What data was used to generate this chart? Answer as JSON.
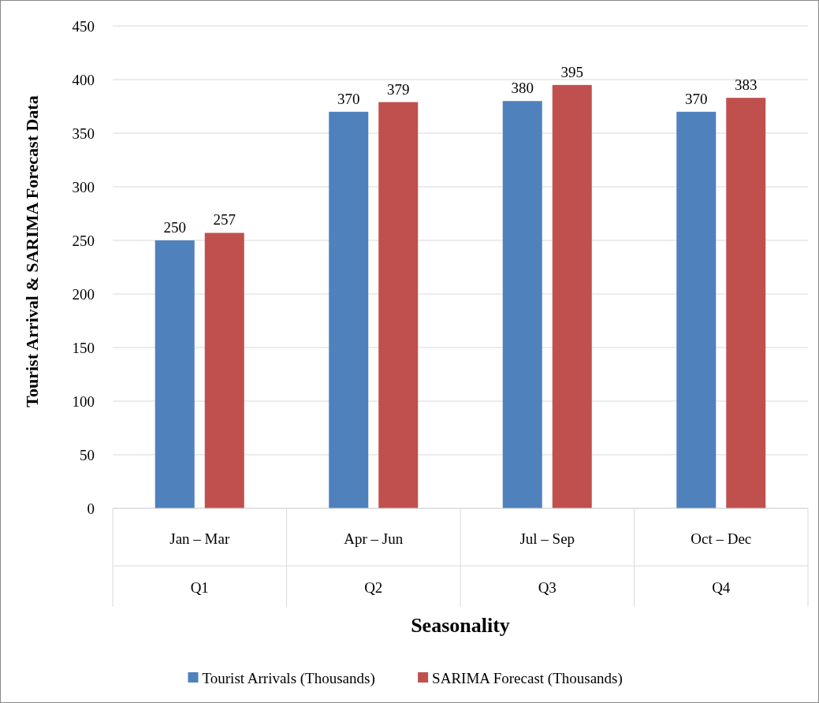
{
  "chart_data": {
    "type": "bar",
    "xlabel": "Seasonality",
    "ylabel": "Tourist Arrival & SARIMA Forecast Data",
    "categories": [
      "Jan – Mar",
      "Apr – Jun",
      "Jul – Sep",
      "Oct – Dec"
    ],
    "series": [
      {
        "name": "Tourist Arrivals (Thousands)",
        "color": "#4f81bd",
        "values": [
          250,
          370,
          380,
          370
        ]
      },
      {
        "name": "SARIMA Forecast (Thousands)",
        "color": "#c0504d",
        "values": [
          257,
          379,
          395,
          383
        ]
      }
    ],
    "annotations": [
      "Q1",
      "Q2",
      "Q3",
      "Q4"
    ],
    "ylim": [
      0,
      450
    ],
    "yticks": [
      0,
      50,
      100,
      150,
      200,
      250,
      300,
      350,
      400,
      450
    ],
    "grid": "y",
    "legend": "bottom",
    "data_labels": true
  }
}
